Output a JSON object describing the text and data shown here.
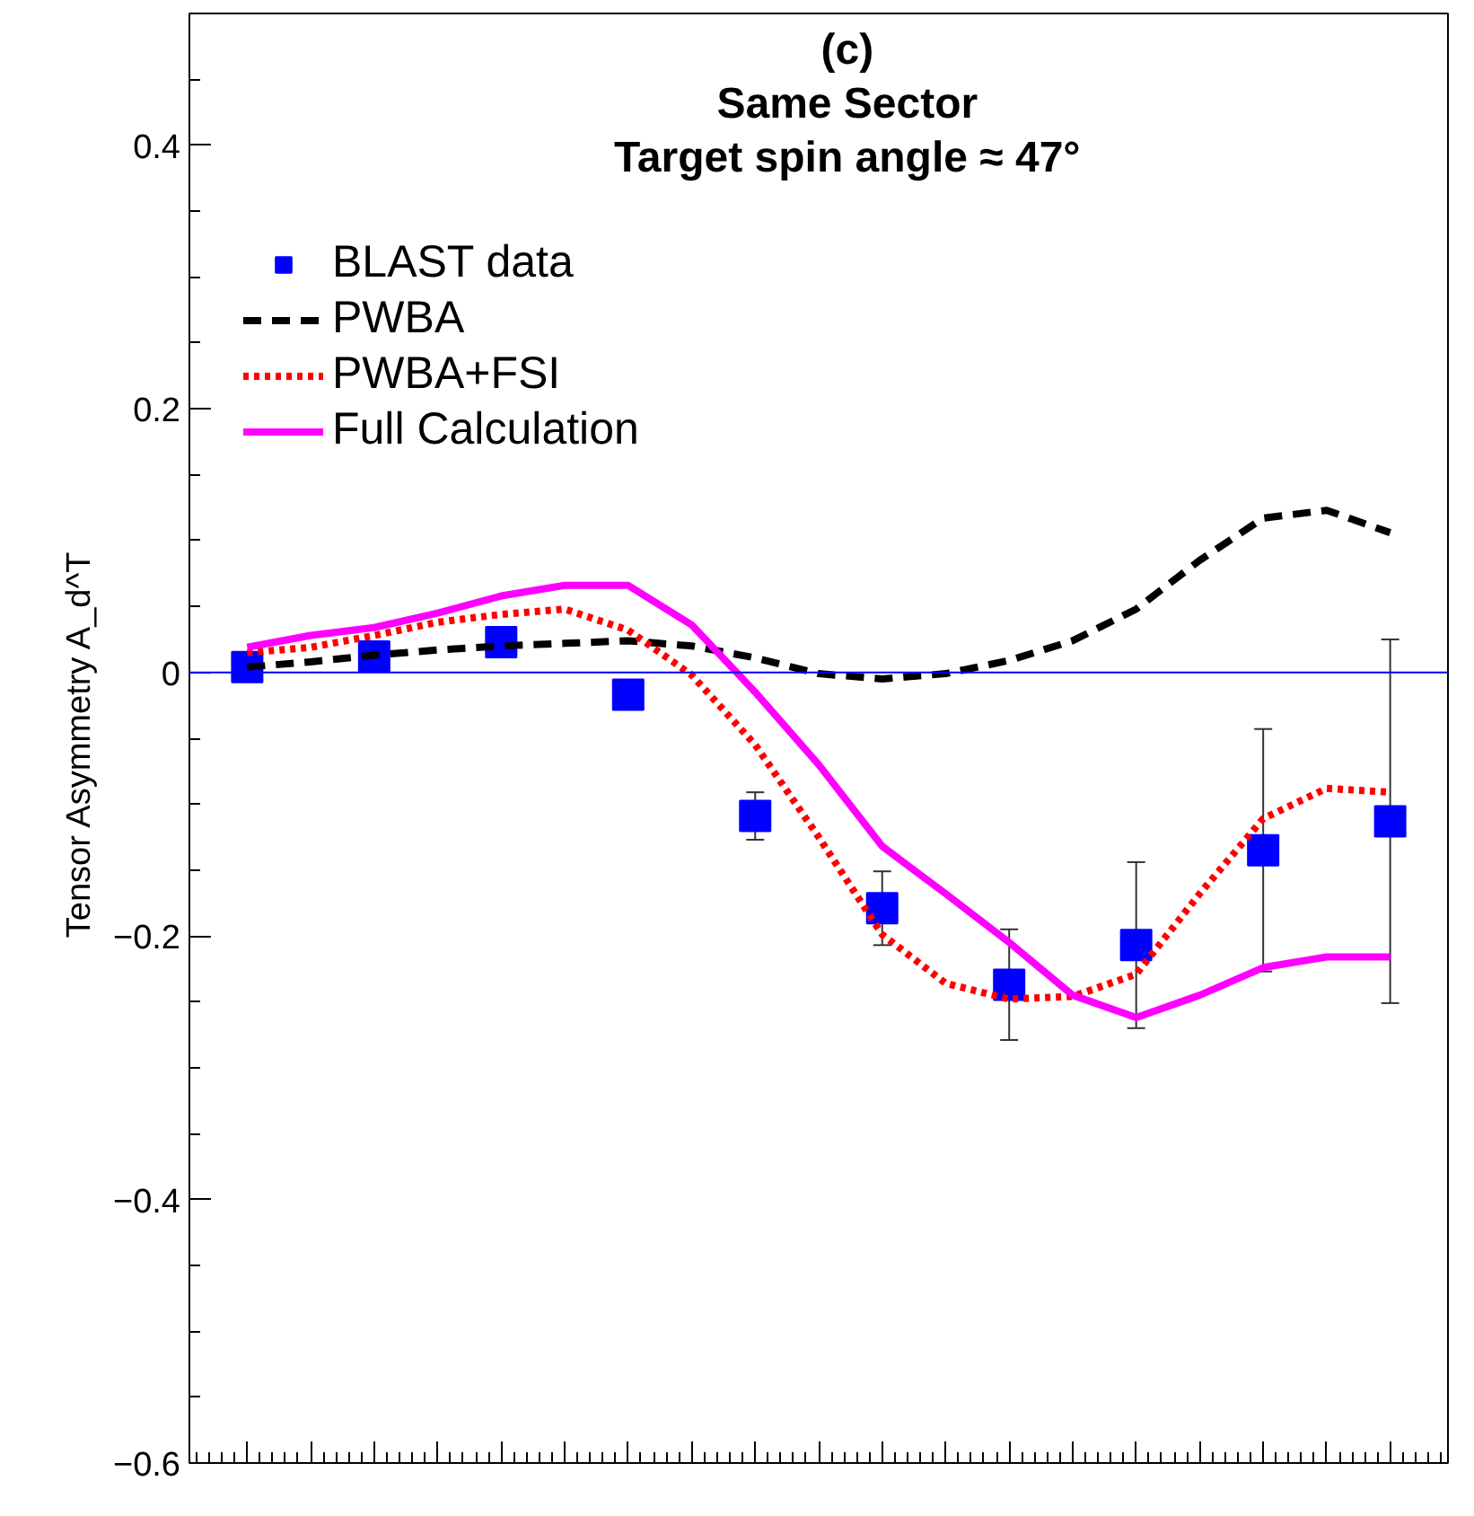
{
  "chart_data": {
    "type": "line",
    "title": "(c)\nSame Sector\nTarget spin angle ≈ 47°",
    "ylabel": "Tensor Asymmetry  A_d^T",
    "categories": [
      null,
      null,
      null,
      null,
      null,
      null,
      null,
      null,
      null,
      null,
      null,
      null,
      null,
      null,
      null,
      null,
      null,
      null,
      null
    ],
    "ylim": [
      -0.6,
      0.5
    ],
    "yticks": [
      {
        "value": -0.6,
        "label": "−0.6"
      },
      {
        "value": -0.4,
        "label": "−0.4"
      },
      {
        "value": -0.2,
        "label": "−0.2"
      },
      0,
      0.2,
      0.4
    ],
    "tick_labels": "y",
    "grid": false,
    "legend": "top left",
    "ref_lines": [
      {
        "axis": "y",
        "value": 0,
        "label": null,
        "color": "#0000ff"
      }
    ],
    "series": [
      {
        "name": "BLAST data",
        "type": "scatter",
        "marker": "square",
        "color": "#0000ff",
        "values": [
          0.004,
          null,
          0.012,
          null,
          0.023,
          null,
          -0.017,
          null,
          -0.109,
          null,
          -0.179,
          null,
          -0.237,
          null,
          -0.207,
          null,
          -0.135,
          null,
          -0.113
        ],
        "errors": [
          null,
          null,
          null,
          null,
          null,
          null,
          null,
          null,
          0.018,
          null,
          0.028,
          null,
          0.042,
          null,
          0.063,
          null,
          0.092,
          null,
          0.138
        ]
      },
      {
        "name": "PWBA",
        "type": "line",
        "line_style": "dashed",
        "color": "#000000",
        "values": [
          0.004,
          0.008,
          0.013,
          0.017,
          0.02,
          0.022,
          0.024,
          0.02,
          0.011,
          -0.001,
          -0.005,
          -0.001,
          0.009,
          0.024,
          0.048,
          0.085,
          0.117,
          0.123,
          0.106
        ]
      },
      {
        "name": "PWBA+FSI",
        "type": "line",
        "line_style": "dotted",
        "color": "#ff0000",
        "values": [
          0.015,
          0.019,
          0.028,
          0.038,
          0.044,
          0.048,
          0.032,
          -0.002,
          -0.055,
          -0.125,
          -0.199,
          -0.236,
          -0.248,
          -0.246,
          -0.229,
          -0.168,
          -0.111,
          -0.088,
          -0.091
        ]
      },
      {
        "name": "Full Calculation",
        "type": "line",
        "line_style": "solid",
        "color": "#ff00ff",
        "values": [
          0.019,
          0.028,
          0.034,
          0.045,
          0.058,
          0.066,
          0.066,
          0.036,
          -0.015,
          -0.07,
          -0.132,
          -0.168,
          -0.205,
          -0.245,
          -0.262,
          -0.245,
          -0.224,
          -0.216,
          -0.216
        ]
      }
    ]
  }
}
